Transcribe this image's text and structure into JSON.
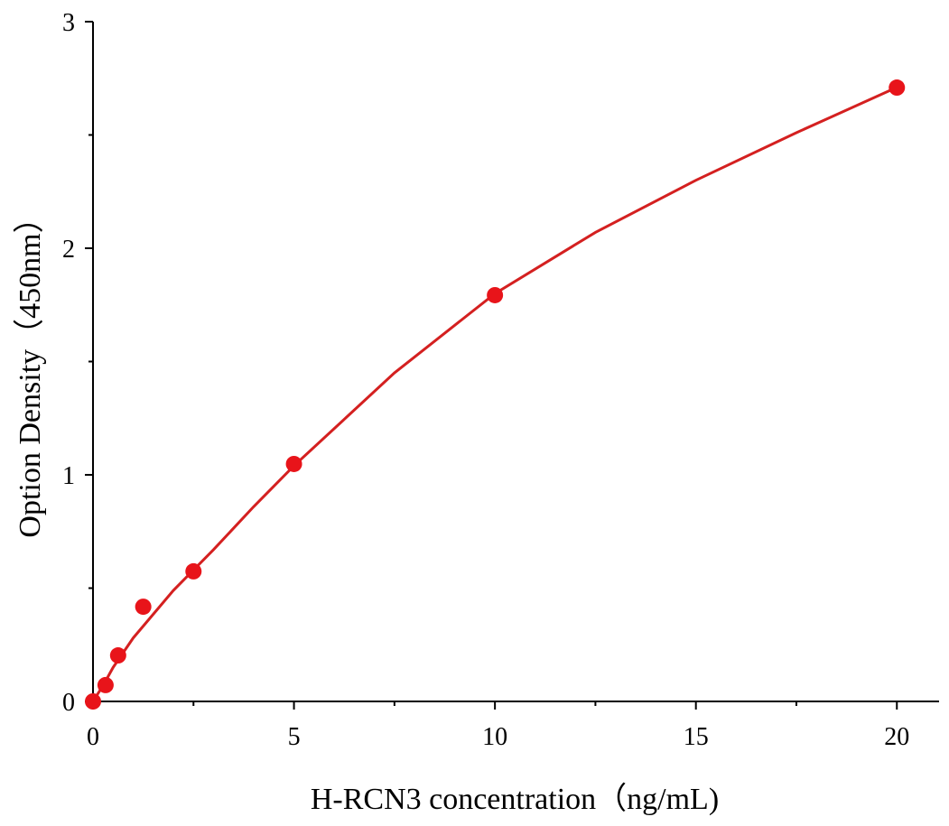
{
  "chart_data": {
    "type": "scatter",
    "x_label": "H-RCN3 concentration（ng/mL)",
    "y_label": "Option Density（450nm）",
    "x": [
      0,
      0.3125,
      0.625,
      1.25,
      2.5,
      5,
      10,
      20
    ],
    "values": [
      0,
      0.072,
      0.203,
      0.418,
      0.574,
      1.048,
      1.793,
      2.709
    ],
    "color": "#e8141a",
    "fit": {
      "x": [
        0,
        0.25,
        0.5,
        1,
        2,
        3,
        4,
        5,
        7.5,
        10,
        12.5,
        15,
        17.5,
        20
      ],
      "values": [
        0,
        0.07,
        0.15,
        0.28,
        0.49,
        0.67,
        0.86,
        1.04,
        1.45,
        1.8,
        2.07,
        2.3,
        2.51,
        2.71
      ],
      "color": "#d42020"
    },
    "xlim": [
      0,
      21.05
    ],
    "ylim": [
      0,
      3
    ],
    "xticks": [
      0,
      5,
      10,
      15,
      20
    ],
    "yticks": [
      0,
      1,
      2,
      3
    ],
    "xminor_ticks": [
      2.5,
      7.5,
      12.5,
      17.5
    ],
    "yminor_ticks": [
      0.5,
      1.5,
      2.5
    ]
  }
}
